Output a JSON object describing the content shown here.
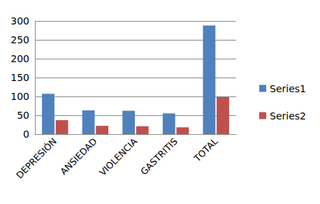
{
  "chart_data": {
    "type": "bar",
    "categories": [
      "DEPRESIÓN",
      "ANSIEDAD",
      "VIOLENCIA",
      "GASTRITIS",
      "TOTAL"
    ],
    "series": [
      {
        "name": "Series1",
        "color": "#4f81bd",
        "values": [
          107,
          63,
          62,
          55,
          288
        ]
      },
      {
        "name": "Series2",
        "color": "#c0504d",
        "values": [
          37,
          22,
          21,
          18,
          98
        ]
      }
    ],
    "ylim": [
      0,
      300
    ],
    "yticks": [
      0,
      50,
      100,
      150,
      200,
      250,
      300
    ],
    "grid": true,
    "legend": "right"
  }
}
